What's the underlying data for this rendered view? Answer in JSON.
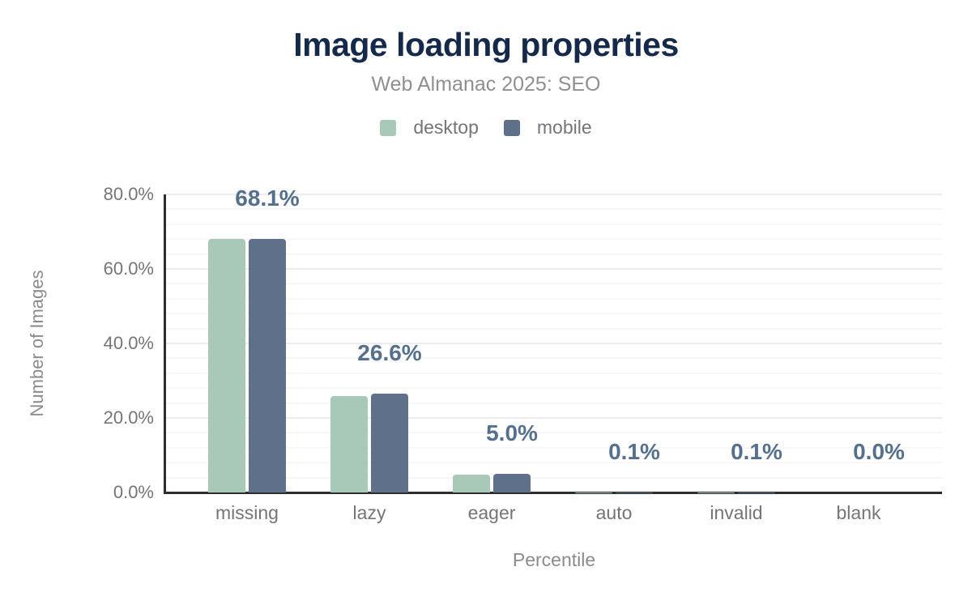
{
  "figure": {
    "title": "Image loading properties",
    "subtitle": "Web Almanac 2025: SEO"
  },
  "chart_data": {
    "type": "bar",
    "title": "Image loading properties",
    "subtitle": "Web Almanac 2025: SEO",
    "categories": [
      "missing",
      "lazy",
      "eager",
      "auto",
      "invalid",
      "blank"
    ],
    "series": [
      {
        "name": "desktop",
        "color": "#a8c9b8",
        "values": [
          68.0,
          25.9,
          4.8,
          0.1,
          0.1,
          0.0
        ]
      },
      {
        "name": "mobile",
        "color": "#5f708b",
        "values": [
          68.1,
          26.6,
          5.0,
          0.1,
          0.1,
          0.0
        ]
      }
    ],
    "value_labels": [
      "68.1%",
      "26.6%",
      "5.0%",
      "0.1%",
      "0.1%",
      "0.0%"
    ],
    "value_labels_series": "mobile",
    "xlabel": "Percentile",
    "ylabel": "Number of Images",
    "y_ticks": [
      {
        "value": 80,
        "label": "80.0%"
      },
      {
        "value": 60,
        "label": "60.0%"
      },
      {
        "value": 40,
        "label": "40.0%"
      },
      {
        "value": 20,
        "label": "20.0%"
      },
      {
        "value": 0,
        "label": "0.0%"
      }
    ],
    "ylim": [
      0,
      80
    ],
    "grid": {
      "orientation": "horizontal",
      "minor_step": 4,
      "major_step": 20
    },
    "legend_position": "top"
  },
  "colors": {
    "background": "#ffffff",
    "title": "#15294b",
    "subtitle": "#8f8f8f",
    "axis_text": "#757575",
    "axis_title": "#8b8b8b",
    "value_label": "#55708f",
    "axis_line": "#2d2d2d",
    "grid_minor": "#f7f7f7",
    "grid_major": "#ececec",
    "desktop": "#a8c9b8",
    "mobile": "#5f708b"
  }
}
